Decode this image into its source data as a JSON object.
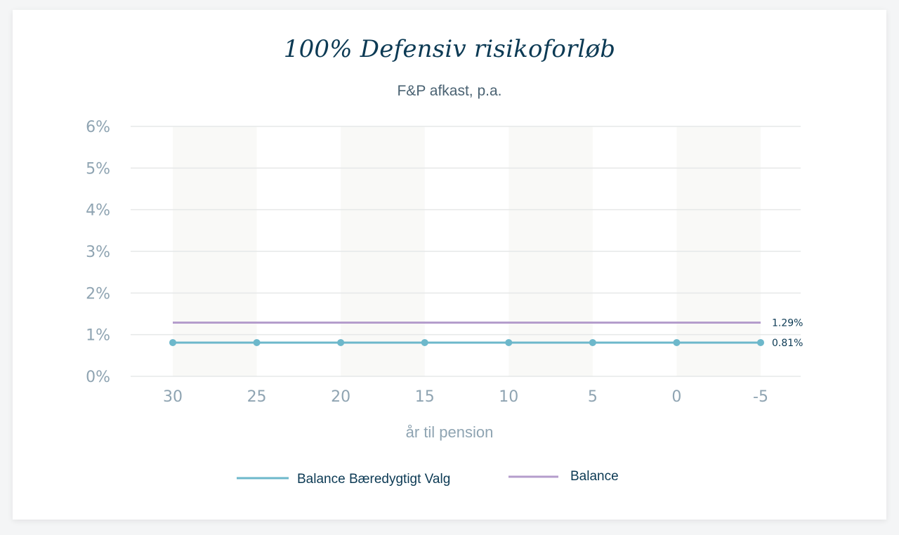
{
  "chart_data": {
    "type": "line",
    "title": "100% Defensiv risikoforløb",
    "subtitle": "F&P afkast, p.a.",
    "xlabel": "år til pension",
    "ylabel": "",
    "x": [
      30,
      25,
      20,
      15,
      10,
      5,
      0,
      -5
    ],
    "x_tick_labels": [
      "30",
      "25",
      "20",
      "15",
      "10",
      "5",
      "0",
      "-5"
    ],
    "y_tick_labels": [
      "0%",
      "1%",
      "2%",
      "3%",
      "4%",
      "5%",
      "6%"
    ],
    "y_ticks": [
      0,
      1,
      2,
      3,
      4,
      5,
      6
    ],
    "ylim": [
      0,
      6
    ],
    "grid": true,
    "legend_position": "bottom",
    "series": [
      {
        "name": "Balance Bæredygtigt Valg",
        "color": "#6db8cb",
        "markers": true,
        "values": [
          0.81,
          0.81,
          0.81,
          0.81,
          0.81,
          0.81,
          0.81,
          0.81
        ],
        "end_label": "0.81%"
      },
      {
        "name": "Balance",
        "color": "#b49dcc",
        "markers": false,
        "values": [
          1.29,
          1.29,
          1.29,
          1.29,
          1.29,
          1.29,
          1.29,
          1.29
        ],
        "end_label": "1.29%"
      }
    ]
  }
}
